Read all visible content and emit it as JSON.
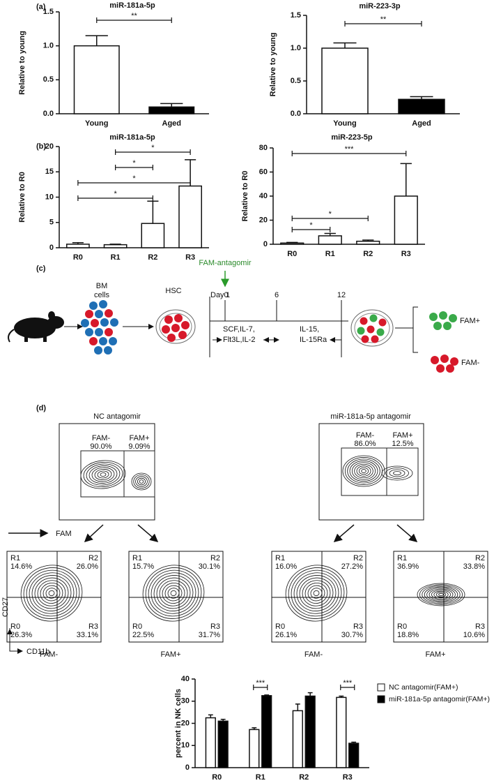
{
  "panels": [
    "(a)",
    "(b)",
    "(c)",
    "(d)"
  ],
  "chart_data": [
    {
      "type": "bar",
      "title": "miR-181a-5p",
      "ylabel": "Relative to young",
      "categories": [
        "Young",
        "Aged"
      ],
      "values": [
        1.0,
        0.1
      ],
      "errors": [
        0.15,
        0.05
      ],
      "colors": [
        "#ffffff",
        "#000000"
      ],
      "ylim": [
        0,
        1.5
      ],
      "yticks": [
        {
          "value": 0,
          "label": "0.0"
        },
        0.5,
        {
          "value": 1,
          "label": "1.0"
        },
        1.5
      ],
      "annotations": [
        {
          "text": "**",
          "between": [
            "Young",
            "Aged"
          ]
        }
      ]
    },
    {
      "type": "bar",
      "title": "miR-223-3p",
      "ylabel": "Relative to young",
      "categories": [
        "Young",
        "Aged"
      ],
      "values": [
        1.0,
        0.22
      ],
      "errors": [
        0.08,
        0.04
      ],
      "colors": [
        "#ffffff",
        "#000000"
      ],
      "ylim": [
        0,
        1.5
      ],
      "yticks": [
        {
          "value": 0,
          "label": "0.0"
        },
        0.5,
        {
          "value": 1,
          "label": "1.0"
        },
        1.5
      ],
      "annotations": [
        {
          "text": "**",
          "between": [
            "Young",
            "Aged"
          ]
        }
      ]
    },
    {
      "type": "bar",
      "title": "miR-181a-5p",
      "ylabel": "Relative to R0",
      "categories": [
        "R0",
        "R1",
        "R2",
        "R3"
      ],
      "values": [
        0.7,
        0.6,
        4.8,
        12.2
      ],
      "errors": [
        0.3,
        0.1,
        4.4,
        5.2
      ],
      "color": "#ffffff",
      "ylim": [
        0,
        20
      ],
      "yticks": [
        0,
        5,
        10,
        15,
        20
      ],
      "annotations": [
        {
          "text": "*",
          "between": [
            "R1",
            "R3"
          ]
        },
        {
          "text": "*",
          "between": [
            "R1",
            "R2"
          ]
        },
        {
          "text": "*",
          "between": [
            "R0",
            "R3"
          ]
        },
        {
          "text": "*",
          "between": [
            "R0",
            "R2"
          ]
        }
      ]
    },
    {
      "type": "bar",
      "title": "miR-223-5p",
      "ylabel": "Relative to R0",
      "categories": [
        "R0",
        "R1",
        "R2",
        "R3"
      ],
      "values": [
        1,
        7,
        2.5,
        40
      ],
      "errors": [
        0.5,
        2,
        1,
        27
      ],
      "color": "#ffffff",
      "ylim": [
        0,
        80
      ],
      "yticks": [
        0,
        20,
        40,
        60,
        80
      ],
      "annotations": [
        {
          "text": "***",
          "between": [
            "R0",
            "R3"
          ]
        },
        {
          "text": "*",
          "between": [
            "R0",
            "R2"
          ]
        },
        {
          "text": "*",
          "between": [
            "R0",
            "R1"
          ]
        }
      ]
    },
    {
      "type": "bar",
      "ylabel": "percent in NK cells",
      "categories": [
        "R0",
        "R1",
        "R2",
        "R3"
      ],
      "ylim": [
        0,
        40
      ],
      "yticks": [
        0,
        10,
        20,
        30,
        40
      ],
      "legend": "upper right",
      "series": [
        {
          "name": "NC antagomir(FAM+)",
          "color": "#ffffff",
          "values": [
            22.5,
            17.2,
            25.7,
            31.7
          ],
          "errors": [
            1.3,
            0.8,
            3,
            0.6
          ]
        },
        {
          "name": "miR-181a-5p antagomir(FAM+)",
          "color": "#000000",
          "values": [
            21,
            32.5,
            32.3,
            11
          ],
          "errors": [
            0.8,
            0.3,
            1.5,
            0.5
          ]
        }
      ],
      "annotations": [
        {
          "text": "***",
          "between": [
            "R1"
          ]
        },
        {
          "text": "***",
          "between": [
            "R3"
          ]
        }
      ]
    }
  ],
  "diagram": {
    "treatment": "FAM-antagomir",
    "bm_label": [
      "BM",
      "cells"
    ],
    "hsc_label": "HSC",
    "days": [
      "Day0",
      "1",
      "6",
      "12"
    ],
    "phase1": [
      "SCF,IL-7,",
      "Flt3L,IL-2"
    ],
    "phase2": [
      "IL-15,",
      "IL-15Ra"
    ],
    "outputs": [
      "FAM+",
      "FAM-"
    ]
  },
  "flow": {
    "gating": [
      {
        "title": "NC antagomir",
        "gates": [
          {
            "name": "FAM-",
            "pct": "90.0%"
          },
          {
            "name": "FAM+",
            "pct": "9.09%"
          }
        ]
      },
      {
        "title": "miR-181a-5p antagomir",
        "gates": [
          {
            "name": "FAM-",
            "pct": "86.0%"
          },
          {
            "name": "FAM+",
            "pct": "12.5%"
          }
        ]
      }
    ],
    "fam_axis": "FAM",
    "y_axis": "CD27",
    "x_axis": "CD11b",
    "quadrants": [
      {
        "caption": "FAM-",
        "regions": [
          {
            "name": "R1",
            "pct": "14.6%"
          },
          {
            "name": "R2",
            "pct": "26.0%"
          },
          {
            "name": "R0",
            "pct": "26.3%"
          },
          {
            "name": "R3",
            "pct": "33.1%"
          }
        ]
      },
      {
        "caption": "FAM+",
        "regions": [
          {
            "name": "R1",
            "pct": "15.7%"
          },
          {
            "name": "R2",
            "pct": "30.1%"
          },
          {
            "name": "R0",
            "pct": "22.5%"
          },
          {
            "name": "R3",
            "pct": "31.7%"
          }
        ]
      },
      {
        "caption": "FAM-",
        "regions": [
          {
            "name": "R1",
            "pct": "16.0%"
          },
          {
            "name": "R2",
            "pct": "27.2%"
          },
          {
            "name": "R0",
            "pct": "26.1%"
          },
          {
            "name": "R3",
            "pct": "30.7%"
          }
        ]
      },
      {
        "caption": "FAM+",
        "regions": [
          {
            "name": "R1",
            "pct": "36.9%"
          },
          {
            "name": "R2",
            "pct": "33.8%"
          },
          {
            "name": "R0",
            "pct": "18.8%"
          },
          {
            "name": "R3",
            "pct": "10.6%"
          }
        ]
      }
    ]
  }
}
